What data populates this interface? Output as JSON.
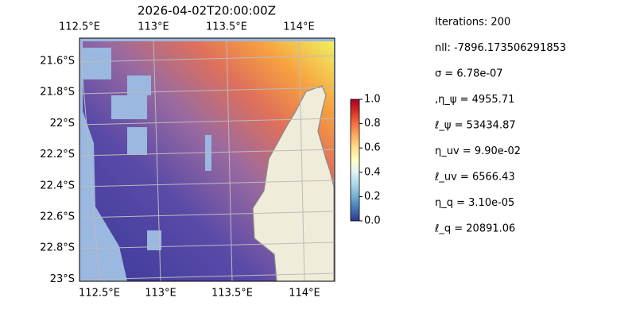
{
  "map": {
    "title": "2026-04-02T20:00:00Z",
    "lon_labels_top": [
      "112.5°E",
      "113°E",
      "113.5°E",
      "114°E"
    ],
    "lon_labels_bottom": [
      "112.5°E",
      "113°E",
      "113.5°E",
      "114°E"
    ],
    "lat_labels": [
      "21.6°S",
      "21.8°S",
      "22°S",
      "22.2°S",
      "22.4°S",
      "22.6°S",
      "22.8°S",
      "23°S"
    ]
  },
  "colorbar": {
    "lim": [
      0,
      1
    ],
    "ticks": [
      {
        "value": 0,
        "label": "0.0"
      },
      0.2,
      0.4,
      0.6,
      0.8,
      {
        "value": 1,
        "label": "1.0"
      }
    ]
  },
  "stats": [
    "Iterations: 200",
    "nll: -7896.173506291853",
    "σ = 6.78e-07",
    ",η_ψ = 4955.71",
    "ℓ_ψ = 53434.87",
    "η_uv = 9.90e-02",
    "ℓ_uv = 6566.43",
    "η_q = 3.10e-05",
    "ℓ_q = 20891.06"
  ]
}
